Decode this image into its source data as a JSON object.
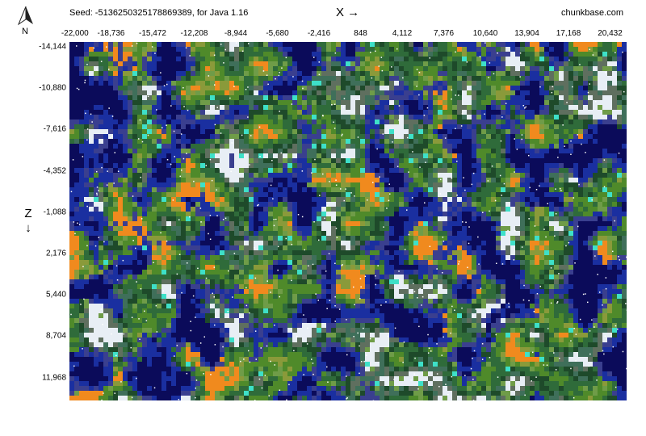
{
  "header": {
    "seed_text": "Seed: -5136250325178869389, for Java 1.16",
    "brand": "chunkbase.com",
    "compass_label": "N",
    "x_axis_label": "X →",
    "z_axis_label": "Z ↓"
  },
  "map": {
    "x_range": [
      -22000,
      22000
    ],
    "z_range": [
      -14144,
      14144
    ],
    "x_ticks": [
      "-22,000",
      "-18,736",
      "-15,472",
      "-12,208",
      "-8,944",
      "-5,680",
      "-2,416",
      "848",
      "4,112",
      "7,376",
      "10,640",
      "13,904",
      "17,168",
      "20,432"
    ],
    "z_ticks": [
      "-14,144",
      "-10,880",
      "-7,616",
      "-4,352",
      "-1,088",
      "2,176",
      "5,440",
      "8,704",
      "11,968"
    ],
    "biome_colors": {
      "deep_ocean": "#0b0b5a",
      "ocean": "#1a2fa0",
      "frozen_ocean": "#3a3f8f",
      "forest": "#2f6b3a",
      "dark_forest": "#1e4a2a",
      "plains": "#6f9c48",
      "jungle": "#4f8a2a",
      "savanna": "#8a9a3a",
      "badlands": "#f08a1e",
      "snowy": "#e8eef5",
      "mushroom": "#3ee0c8",
      "mountains": "#5f6f5f",
      "taiga": "#3f6f5a"
    }
  }
}
